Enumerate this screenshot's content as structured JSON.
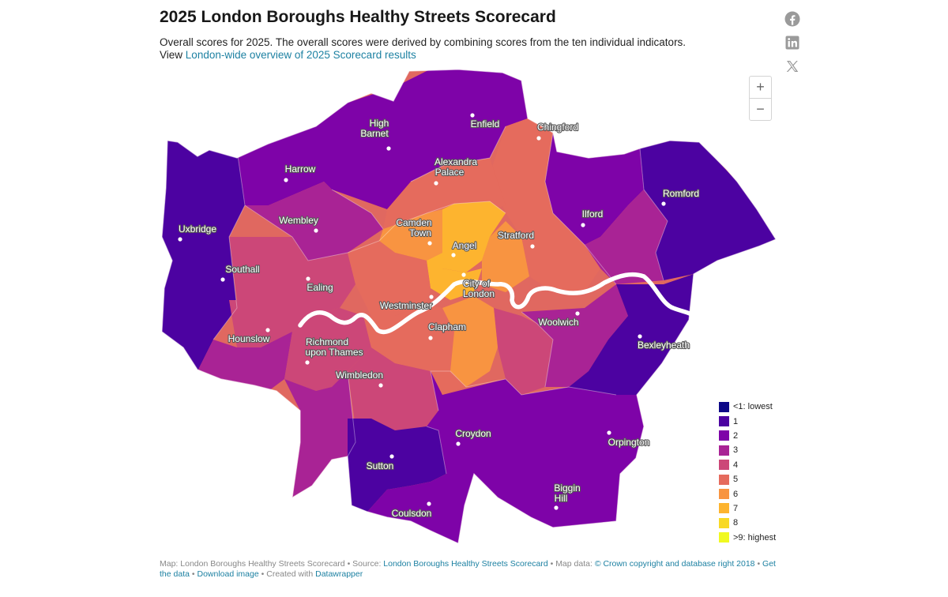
{
  "title": "2025 London Boroughs Healthy Streets Scorecard",
  "description": "Overall scores for 2025. The overall scores were derived by combining scores from the ten individual indicators.",
  "view_prefix": "View",
  "view_link": "London-wide overview of 2025 Scorecard results",
  "share": {
    "facebook": "facebook-icon",
    "linkedin": "linkedin-icon",
    "x": "x-icon"
  },
  "zoom": {
    "in": "+",
    "out": "−"
  },
  "places": [
    {
      "name": "high-barnet",
      "lines": [
        "High",
        "Barnet"
      ]
    },
    {
      "name": "enfield",
      "lines": [
        "Enfield"
      ]
    },
    {
      "name": "chingford",
      "lines": [
        "Chingford"
      ]
    },
    {
      "name": "harrow",
      "lines": [
        "Harrow"
      ]
    },
    {
      "name": "alexandra-palace",
      "lines": [
        "Alexandra",
        "Palace"
      ]
    },
    {
      "name": "romford",
      "lines": [
        "Romford"
      ]
    },
    {
      "name": "ilford",
      "lines": [
        "Ilford"
      ]
    },
    {
      "name": "wembley",
      "lines": [
        "Wembley"
      ]
    },
    {
      "name": "camden-town",
      "lines": [
        "Camden",
        "Town"
      ]
    },
    {
      "name": "uxbridge",
      "lines": [
        "Uxbridge"
      ]
    },
    {
      "name": "stratford",
      "lines": [
        "Stratford"
      ]
    },
    {
      "name": "angel",
      "lines": [
        "Angel"
      ]
    },
    {
      "name": "southall",
      "lines": [
        "Southall"
      ]
    },
    {
      "name": "city-of-london",
      "lines": [
        "City of",
        "London"
      ]
    },
    {
      "name": "ealing",
      "lines": [
        "Ealing"
      ]
    },
    {
      "name": "westminster",
      "lines": [
        "Westminster"
      ]
    },
    {
      "name": "woolwich",
      "lines": [
        "Woolwich"
      ]
    },
    {
      "name": "clapham",
      "lines": [
        "Clapham"
      ]
    },
    {
      "name": "hounslow",
      "lines": [
        "Hounslow"
      ]
    },
    {
      "name": "bexleyheath",
      "lines": [
        "Bexleyheath"
      ]
    },
    {
      "name": "richmond-upon-thames",
      "lines": [
        "Richmond",
        "upon Thames"
      ]
    },
    {
      "name": "wimbledon",
      "lines": [
        "Wimbledon"
      ]
    },
    {
      "name": "croydon",
      "lines": [
        "Croydon"
      ]
    },
    {
      "name": "orpington",
      "lines": [
        "Orpington"
      ]
    },
    {
      "name": "sutton",
      "lines": [
        "Sutton"
      ]
    },
    {
      "name": "biggin-hill",
      "lines": [
        "Biggin",
        "Hill"
      ]
    },
    {
      "name": "coulsdon",
      "lines": [
        "Coulsdon"
      ]
    }
  ],
  "legend": [
    {
      "label": "<1: lowest",
      "color": "#0d0887"
    },
    {
      "label": "1",
      "color": "#4c02a1"
    },
    {
      "label": "2",
      "color": "#7e03a8"
    },
    {
      "label": "3",
      "color": "#a92395"
    },
    {
      "label": "4",
      "color": "#cc4778"
    },
    {
      "label": "5",
      "color": "#e56b5d"
    },
    {
      "label": "6",
      "color": "#f89441"
    },
    {
      "label": "7",
      "color": "#fdb42f"
    },
    {
      "label": "8",
      "color": "#f8d925"
    },
    {
      "label": ">9: highest",
      "color": "#f0f921"
    }
  ],
  "footer": {
    "map_label": "Map: London Boroughs Healthy Streets Scorecard",
    "source_prefix": "Source:",
    "source_link": "London Boroughs Healthy Streets Scorecard",
    "mapdata_prefix": "Map data:",
    "mapdata_link": "© Crown copyright and database right 2018",
    "get_data": "Get the data",
    "download": "Download image",
    "created_prefix": "Created with",
    "created_link": "Datawrapper",
    "sep": "•"
  }
}
